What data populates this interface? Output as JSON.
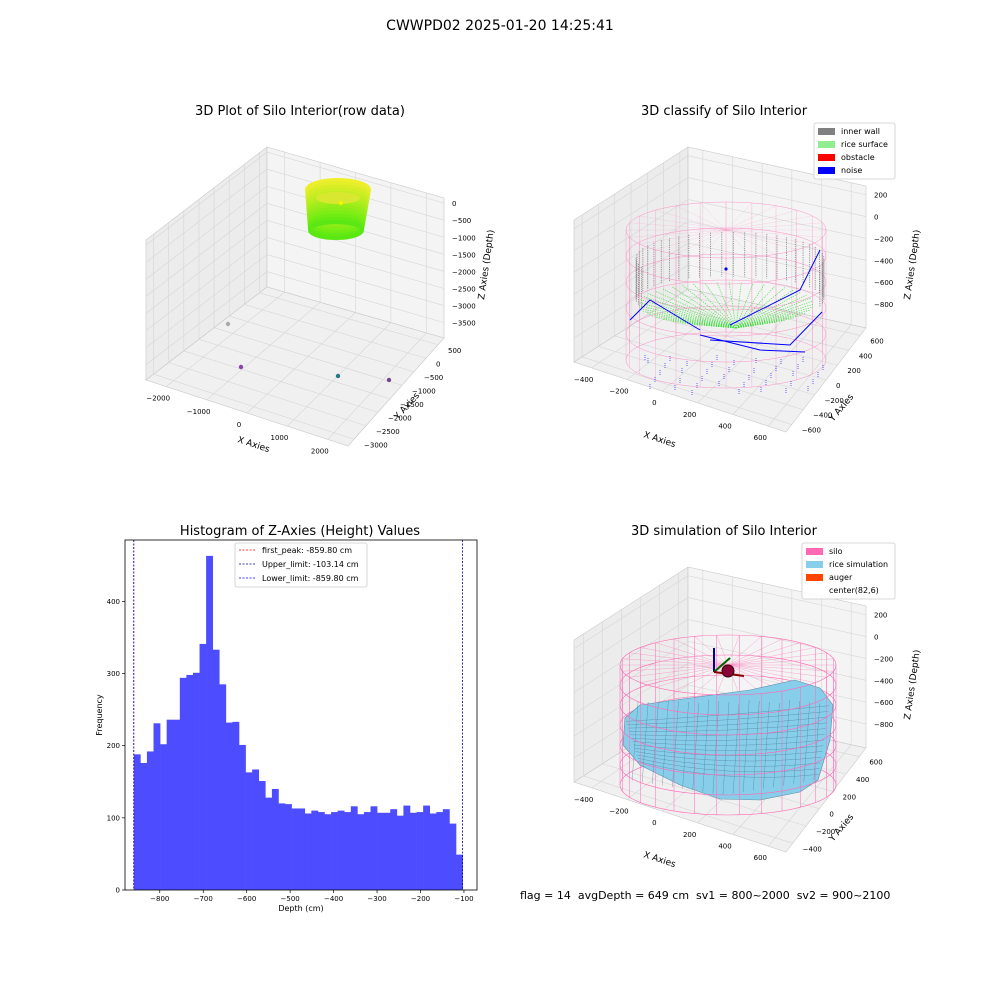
{
  "figure": {
    "suptitle": "CWWPD02 2025-01-20 14:25:41",
    "footer": "flag = 14  avgDepth = 649 cm  sv1 = 800~2000  sv2 = 900~2100"
  },
  "colors": {
    "inner_wall": "#808080",
    "rice_surface": "#90ee90",
    "obstacle": "#ff0000",
    "noise": "#0000ff",
    "silo": "#ff69b4",
    "rice_simulation": "#87ceeb",
    "auger": "#ff4500",
    "hist_bar": "#4d4dff"
  },
  "chart_data": [
    {
      "type": "scatter",
      "title": "3D Plot of Silo Interior(row data)",
      "xlabel": "X Axies",
      "ylabel": "Y Axies",
      "zlabel": "Z Axies (Depth)",
      "xticks": [
        "−2000",
        "−1000",
        "0",
        "1000",
        "2000"
      ],
      "yticks": [
        "500",
        "0",
        "−500",
        "−1000",
        "−1500",
        "−2000",
        "−2500",
        "−3000"
      ],
      "zticks": [
        "0",
        "−500",
        "−1000",
        "−1500",
        "−2000",
        "−2500",
        "−3000",
        "−3500"
      ],
      "colormap": "viridis",
      "outlier_points": [
        {
          "x": -1700,
          "y": -600,
          "z": -3100
        },
        {
          "x": -1300,
          "y": -2300,
          "z": -3500
        },
        {
          "x": 600,
          "y": -2600,
          "z": -3500
        },
        {
          "x": 1600,
          "y": -1700,
          "z": -3500
        }
      ]
    },
    {
      "type": "scatter",
      "title": "3D classify of Silo Interior",
      "xlabel": "X Axies",
      "ylabel": "Y Axies",
      "zlabel": "Z Axies (Depth)",
      "xticks": [
        "−400",
        "−200",
        "0",
        "200",
        "400",
        "600"
      ],
      "yticks": [
        "600",
        "400",
        "200",
        "0",
        "−200",
        "−400",
        "−600"
      ],
      "zticks": [
        "200",
        "0",
        "−200",
        "−400",
        "−600",
        "−800"
      ],
      "legend": [
        "inner wall",
        "rice surface",
        "obstacle",
        "noise"
      ],
      "legend_position": "top-right"
    },
    {
      "type": "bar",
      "title": "Histogram of Z-Axies (Height) Values",
      "xlabel": "Depth (cm)",
      "ylabel": "Frequency",
      "xlim": [
        -880,
        -70
      ],
      "ylim": [
        0,
        485
      ],
      "xticks": [
        -800,
        -700,
        -600,
        -500,
        -400,
        -300,
        -200,
        -100
      ],
      "yticks": [
        0,
        100,
        200,
        300,
        400
      ],
      "bin_start": -859.8,
      "bin_width": 15.1332,
      "values": [
        188,
        176,
        192,
        231,
        202,
        236,
        236,
        294,
        298,
        301,
        341,
        463,
        333,
        285,
        232,
        233,
        201,
        163,
        167,
        151,
        128,
        140,
        120,
        119,
        113,
        113,
        106,
        110,
        108,
        105,
        108,
        110,
        108,
        116,
        105,
        108,
        116,
        107,
        107,
        112,
        103,
        117,
        107,
        108,
        117,
        106,
        108,
        112,
        92,
        49
      ],
      "lines": [
        {
          "label": "first_peak: -859.80 cm",
          "value": -859.8,
          "color": "#ff0000"
        },
        {
          "label": "Upper_limit: -103.14 cm",
          "value": -103.14,
          "color": "#00008b"
        },
        {
          "label": "Lower_limit: -859.80 cm",
          "value": -859.8,
          "color": "#0000ff"
        }
      ],
      "legend_position": "top-center"
    },
    {
      "type": "scatter",
      "title": "3D simulation of Silo Interior",
      "xlabel": "X Axies",
      "ylabel": "Y Axies",
      "zlabel": "Z Axies (Depth)",
      "xticks": [
        "−400",
        "−200",
        "0",
        "200",
        "400",
        "600"
      ],
      "yticks": [
        "600",
        "400",
        "200",
        "0",
        "−200",
        "−400"
      ],
      "zticks": [
        "200",
        "0",
        "−200",
        "−400",
        "−600",
        "−800"
      ],
      "legend": [
        "silo",
        "rice simulation",
        "auger",
        "center(82,6)"
      ],
      "legend_position": "top-right"
    }
  ]
}
